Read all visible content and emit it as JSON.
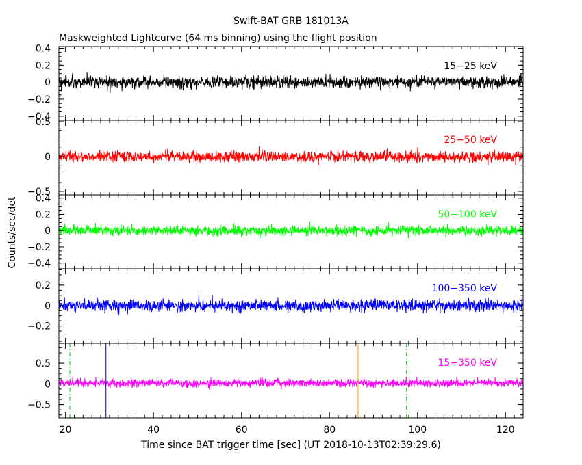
{
  "chart_data": {
    "type": "line",
    "title": "Swift-BAT GRB 181013A",
    "subtitle": "Maskweighted Lightcurve (64 ms binning) using the flight position",
    "xlabel": "Time since BAT trigger time [sec] (UT 2018-10-13T02:39:29.6)",
    "ylabel": "Counts/sec/det",
    "xlim": [
      18.5,
      124
    ],
    "x_ticks": [
      20,
      40,
      60,
      80,
      100,
      120
    ],
    "bin_width_s": 0.064,
    "panels": [
      {
        "name": "15-25 keV",
        "label": "15−25 keV",
        "color": "#000000",
        "ylim": [
          -0.45,
          0.42
        ],
        "yticks": [
          -0.4,
          -0.2,
          0,
          0.2,
          0.4
        ],
        "ytick_labels": [
          "−0.4",
          "−0.2",
          "0",
          "0.2",
          "0.4"
        ],
        "mean": 0.0,
        "noise_sd": 0.035
      },
      {
        "name": "25-50 keV",
        "label": "25−50 keV",
        "color": "#ff0000",
        "ylim": [
          -0.55,
          0.52
        ],
        "yticks": [
          -0.5,
          0,
          0.5
        ],
        "ytick_labels": [
          "−0.5",
          "0",
          "0.5"
        ],
        "mean": 0.0,
        "noise_sd": 0.04
      },
      {
        "name": "50-100 keV",
        "label": "50−100 keV",
        "color": "#00ff00",
        "ylim": [
          -0.47,
          0.44
        ],
        "yticks": [
          -0.4,
          -0.2,
          0,
          0.2,
          0.4
        ],
        "ytick_labels": [
          "−0.4",
          "−0.2",
          "0",
          "0.2",
          "0.4"
        ],
        "mean": 0.0,
        "noise_sd": 0.03
      },
      {
        "name": "100-350 keV",
        "label": "100−350 keV",
        "color": "#0000ff",
        "ylim": [
          -0.37,
          0.36
        ],
        "yticks": [
          -0.2,
          0,
          0.2
        ],
        "ytick_labels": [
          "−0.2",
          "0",
          "0.2"
        ],
        "mean": 0.0,
        "noise_sd": 0.03
      },
      {
        "name": "15-350 keV",
        "label": "15−350 keV",
        "color": "#ff00ff",
        "ylim": [
          -0.82,
          0.98
        ],
        "yticks": [
          -0.5,
          0,
          0.5
        ],
        "ytick_labels": [
          "−0.5",
          "0",
          "0.5"
        ],
        "mean": 0.02,
        "noise_sd": 0.05
      }
    ],
    "vertical_markers": [
      {
        "x": 21.0,
        "color": "#00cc00",
        "style": "dashdot"
      },
      {
        "x": 29.2,
        "color": "#000080",
        "style": "solid"
      },
      {
        "x": 86.5,
        "color": "#ff9900",
        "style": "solid"
      },
      {
        "x": 97.5,
        "color": "#00cc00",
        "style": "dashdot"
      }
    ]
  }
}
